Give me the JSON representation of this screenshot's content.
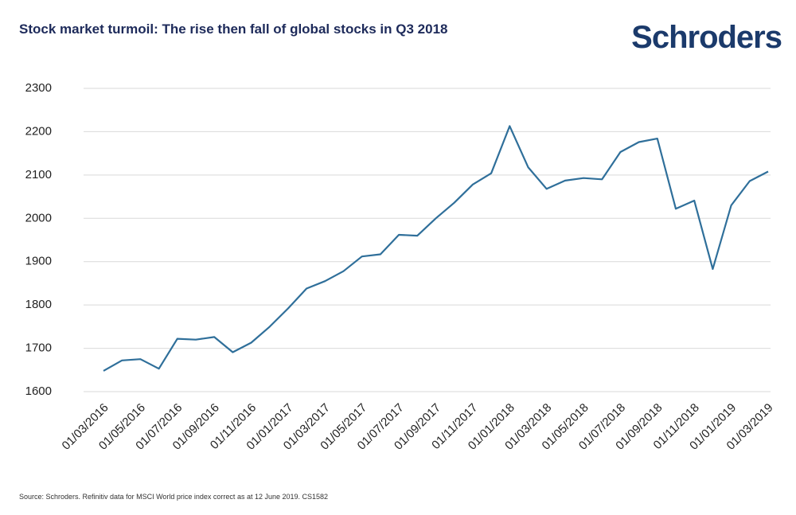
{
  "logo": "Schroders",
  "chart_data": {
    "type": "line",
    "title": "Stock market turmoil: The rise then fall of global stocks in Q3 2018",
    "source": "Source: Schroders. Refinitiv data for MSCI World price index correct as at 12 June 2019. CS1582",
    "categories": [
      "01/03/2016",
      null,
      "01/05/2016",
      null,
      "01/07/2016",
      null,
      "01/09/2016",
      null,
      "01/11/2016",
      null,
      "01/01/2017",
      null,
      "01/03/2017",
      null,
      "01/05/2017",
      null,
      "01/07/2017",
      null,
      "01/09/2017",
      null,
      "01/11/2017",
      null,
      "01/01/2018",
      null,
      "01/03/2018",
      null,
      "01/05/2018",
      null,
      "01/07/2018",
      null,
      "01/09/2018",
      null,
      "01/11/2018",
      null,
      "01/01/2019",
      null,
      "01/03/2019"
    ],
    "values": [
      1648,
      1672,
      1675,
      1653,
      1722,
      1720,
      1726,
      1691,
      1713,
      1750,
      1792,
      1838,
      1855,
      1878,
      1912,
      1917,
      1962,
      1960,
      2000,
      2036,
      2078,
      2104,
      2213,
      2118,
      2068,
      2087,
      2093,
      2090,
      2153,
      2176,
      2184,
      2022,
      2041,
      1883,
      2030,
      2086,
      2108
    ],
    "color": "#2f6f9a",
    "ylim": [
      1600,
      2300
    ],
    "yticks": [
      1600,
      1700,
      1800,
      1900,
      2000,
      2100,
      2200,
      2300
    ],
    "grid": true
  }
}
